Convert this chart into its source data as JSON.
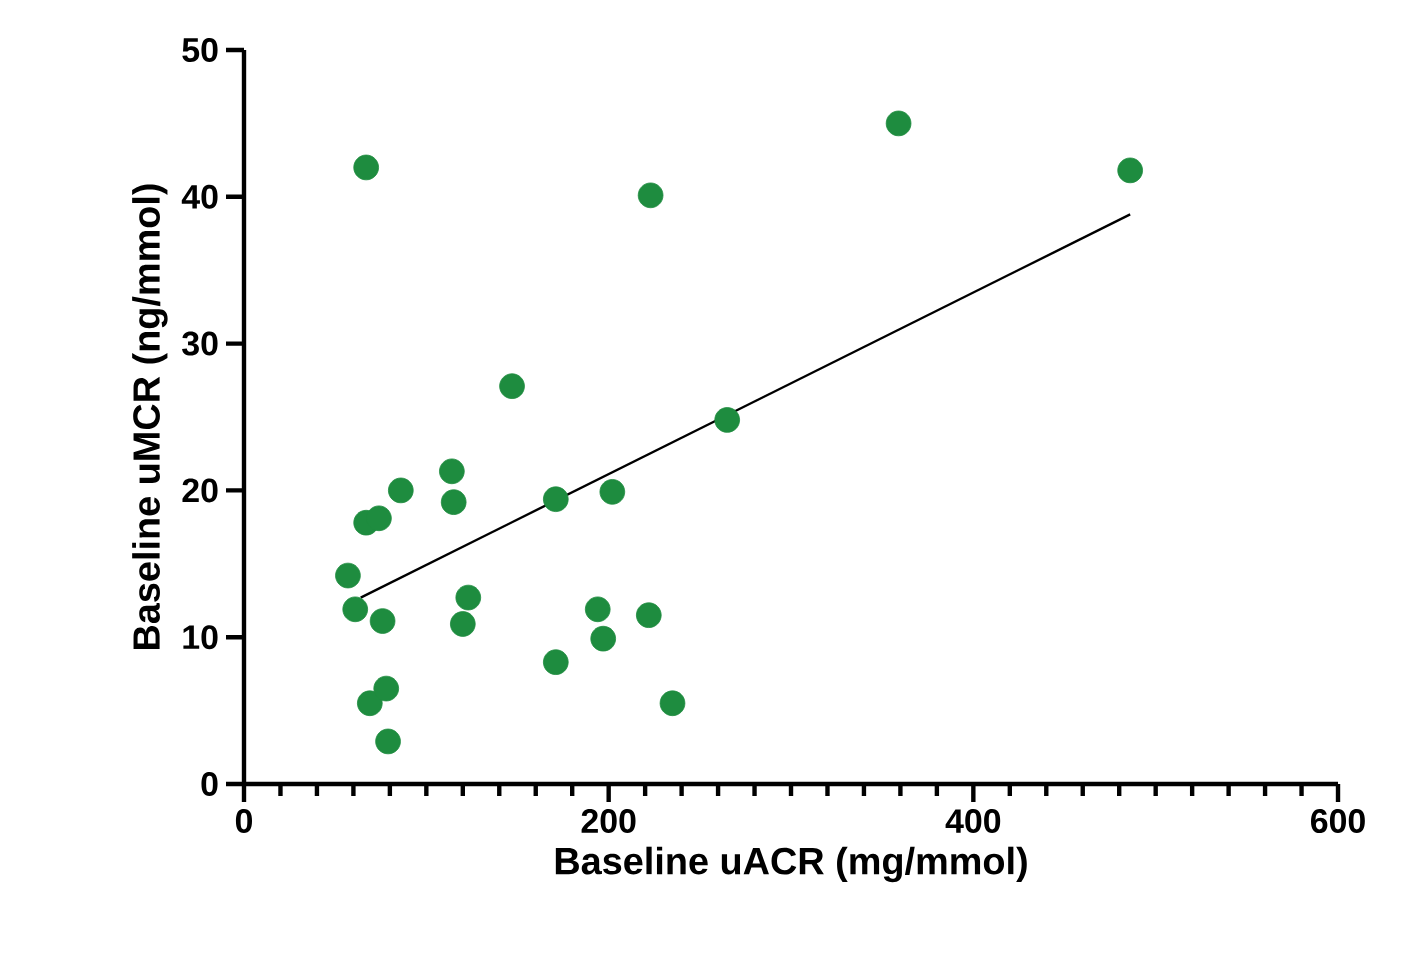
{
  "chart_data": {
    "type": "scatter",
    "xlabel": "Baseline uACR (mg/mmol)",
    "ylabel": "Baseline uMCR (ng/mmol)",
    "xlim": [
      0,
      600
    ],
    "ylim": [
      0,
      50
    ],
    "xticks": [
      0,
      200,
      400,
      600
    ],
    "yticks": [
      0,
      10,
      20,
      30,
      40,
      50
    ],
    "grid": false,
    "series": [
      {
        "color": "#1e8c3f",
        "marker": "circle",
        "x": [
          67,
          223,
          359,
          486,
          147,
          265,
          114,
          86,
          115,
          171,
          202,
          67,
          74,
          57,
          61,
          76,
          123,
          120,
          194,
          197,
          222,
          171,
          235,
          69,
          78,
          79
        ],
        "values": [
          42.0,
          40.1,
          45.0,
          41.8,
          27.1,
          24.8,
          21.3,
          20.0,
          19.2,
          19.4,
          19.9,
          17.8,
          18.1,
          14.2,
          11.9,
          11.1,
          12.7,
          10.9,
          11.9,
          9.9,
          11.5,
          8.3,
          5.5,
          5.5,
          6.5,
          2.9
        ]
      },
      {
        "type": "line",
        "color": "#000000",
        "marker": "none",
        "line_style": "solid",
        "x": [
          64,
          486
        ],
        "values": [
          12.7,
          38.8
        ]
      }
    ]
  }
}
